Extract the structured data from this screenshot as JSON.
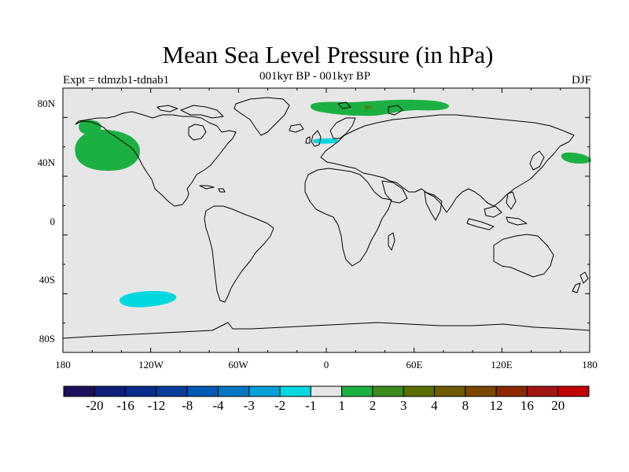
{
  "header": {
    "title": "Mean Sea Level Pressure (in hPa)",
    "subtitle": "001kyr BP - 001kyr BP",
    "left_label": "Expt = tdmzb1-tdnab1",
    "right_label": "DJF"
  },
  "map": {
    "land_fill": "#e6e6e6",
    "coast_color": "#000000",
    "lat_ticks": [
      "80N",
      "40N",
      "0",
      "40S",
      "80S"
    ],
    "lon_ticks": [
      "180",
      "120W",
      "60W",
      "0",
      "60E",
      "120E",
      "180"
    ],
    "anomaly_regions": [
      {
        "name": "north-pacific-high",
        "bin": "1 to 2",
        "color": "#1cb043",
        "lon": -140,
        "lat": 45
      },
      {
        "name": "alaska-high",
        "bin": "1 to 2",
        "color": "#1cb043",
        "lon": -151,
        "lat": 62
      },
      {
        "name": "siberia-arctic-high",
        "bin": "1 to 2",
        "color": "#1cb043",
        "lon": 45,
        "lat": 78
      },
      {
        "name": "arctic-ocean-max",
        "bin": "2 to 3",
        "color": "#3c8c1c",
        "lon": 30,
        "lat": 78
      },
      {
        "name": "northwest-pacific-high",
        "bin": "1 to 2",
        "color": "#1cb043",
        "lon": 170,
        "lat": 42
      },
      {
        "name": "south-pacific-low",
        "bin": "-2 to -1",
        "color": "#00d8e0",
        "lon": -128,
        "lat": -54
      },
      {
        "name": "north-sea-low",
        "bin": "-2 to -1",
        "color": "#00d8e0",
        "lon": 3,
        "lat": 57
      }
    ]
  },
  "colorbar": {
    "colors": [
      "#1e0f5a",
      "#0f1e78",
      "#0a2d8c",
      "#0a3c9c",
      "#0059b4",
      "#0077c4",
      "#00a0d8",
      "#00d8e0",
      "#e6e6e6",
      "#1cb043",
      "#3c8c1c",
      "#5a6e00",
      "#6e5a00",
      "#7a4600",
      "#8c2800",
      "#a01414",
      "#c00000"
    ],
    "labels": [
      "-20",
      "-16",
      "-12",
      "-8",
      "-4",
      "-3",
      "-2",
      "-1",
      "1",
      "2",
      "3",
      "4",
      "8",
      "12",
      "16",
      "20"
    ]
  }
}
